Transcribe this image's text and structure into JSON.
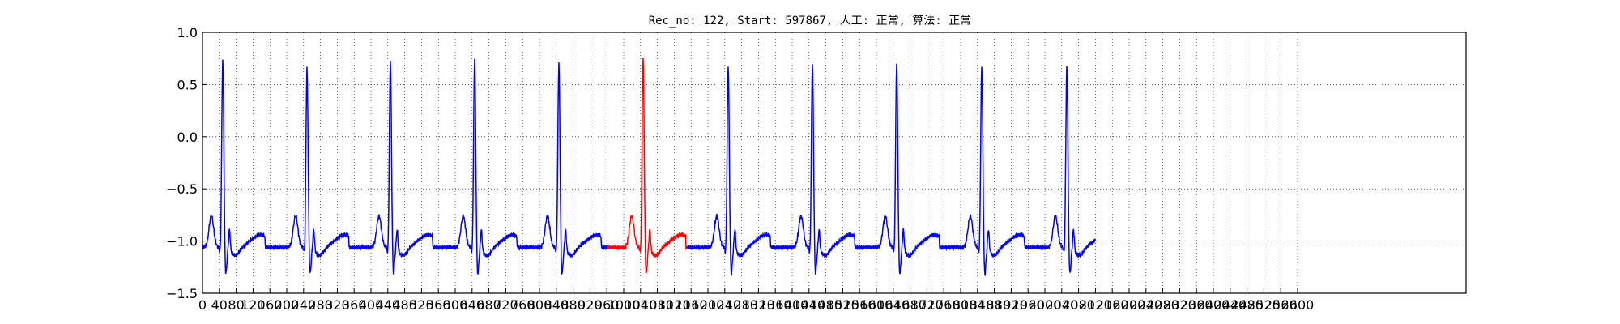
{
  "chart_data": {
    "type": "line",
    "title": "Rec_no: 122, Start: 597867, 人工: 正常, 算法: 正常",
    "xlabel": "",
    "ylabel": "",
    "xlim": [
      0,
      3000
    ],
    "ylim": [
      -1.5,
      1.0
    ],
    "grid": true,
    "grid_style": "dotted",
    "y_ticks": [
      "1.0",
      "0.5",
      "0.0",
      "−0.5",
      "−1.0",
      "−1.5"
    ],
    "y_tick_values": [
      1.0,
      0.5,
      0.0,
      -0.5,
      -1.0,
      -1.5
    ],
    "x_tick_values": [
      0,
      40,
      80,
      120,
      160,
      200,
      240,
      280,
      320,
      360,
      400,
      440,
      480,
      520,
      560,
      600,
      640,
      680,
      720,
      760,
      800,
      840,
      880,
      920,
      960,
      1000,
      1040,
      1080,
      1120,
      1160,
      1200,
      1240,
      1280,
      1320,
      1360,
      1400,
      1440,
      1480,
      1520,
      1560,
      1600,
      1640,
      1680,
      1720,
      1760,
      1800,
      1840,
      1880,
      1920,
      1960,
      2000,
      2040,
      2080,
      2120,
      2160,
      2200,
      2240,
      2280,
      2320,
      2360,
      2400,
      2440,
      2480,
      2520,
      2560,
      2600
    ],
    "series": [
      {
        "color": "#0000ff",
        "x_range": [
          0,
          2120
        ],
        "beats_r_peak_x": [
          48,
          248,
          446,
          646,
          846,
          1248,
          1448,
          1648,
          1850,
          2052
        ],
        "beats_r_peak_y": [
          0.78,
          0.7,
          0.78,
          0.8,
          0.76,
          0.73,
          0.76,
          0.76,
          0.73,
          0.72
        ]
      },
      {
        "color": "#ff0000",
        "x_range": [
          960,
          1150
        ],
        "beats_r_peak_x": [
          1046
        ],
        "beats_r_peak_y": [
          0.8
        ]
      }
    ]
  }
}
